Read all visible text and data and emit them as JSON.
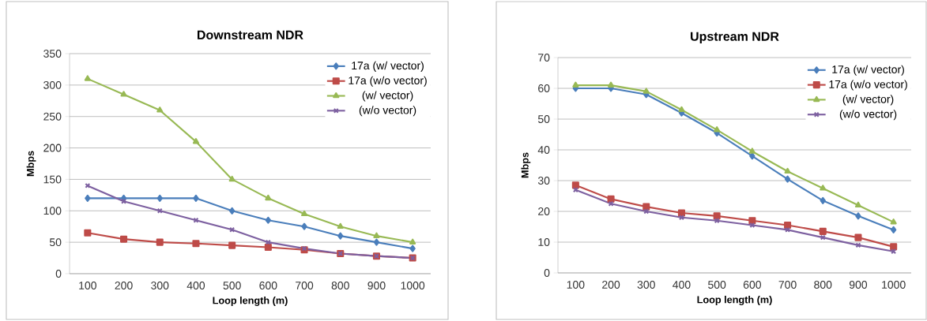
{
  "chart_data": [
    {
      "type": "line",
      "title": "Downstream NDR",
      "xlabel": "Loop length (m)",
      "ylabel": "Mbps",
      "categories": [
        "100",
        "200",
        "300",
        "400",
        "500",
        "600",
        "700",
        "800",
        "900",
        "1000"
      ],
      "ylim": [
        0,
        350
      ],
      "yticks": [
        0,
        50,
        100,
        150,
        200,
        250,
        300,
        350
      ],
      "grid": "y",
      "legend": "top right",
      "line_style": "solid",
      "series": [
        {
          "name": "17a (w/ vector)",
          "color": "#4a7ebb",
          "marker": "diamond",
          "values": [
            120,
            120,
            120,
            120,
            100,
            85,
            75,
            60,
            50,
            40
          ]
        },
        {
          "name": "17a (w/o vector)",
          "color": "#be4b48",
          "marker": "square",
          "values": [
            65,
            55,
            50,
            48,
            45,
            42,
            38,
            32,
            28,
            25
          ]
        },
        {
          "name": "(w/ vector)",
          "color": "#98b954",
          "marker": "triangle",
          "values": [
            310,
            285,
            260,
            210,
            150,
            120,
            95,
            75,
            60,
            50
          ]
        },
        {
          "name": "(w/o vector)",
          "color": "#7d60a0",
          "marker": "cross",
          "values": [
            140,
            115,
            100,
            85,
            70,
            50,
            40,
            32,
            28,
            25
          ]
        }
      ]
    },
    {
      "type": "line",
      "title": "Upstream NDR",
      "xlabel": "Loop length (m)",
      "ylabel": "Mbps",
      "categories": [
        "100",
        "200",
        "300",
        "400",
        "500",
        "600",
        "700",
        "800",
        "900",
        "1000"
      ],
      "ylim": [
        0,
        70
      ],
      "yticks": [
        0,
        10,
        20,
        30,
        40,
        50,
        60,
        70
      ],
      "grid": "y",
      "legend": "top right",
      "line_style": "solid",
      "series": [
        {
          "name": "17a (w/ vector)",
          "color": "#4a7ebb",
          "marker": "diamond",
          "values": [
            60,
            60,
            58,
            52,
            45.5,
            38,
            30.5,
            23.5,
            18.5,
            14
          ]
        },
        {
          "name": "17a (w/o vector)",
          "color": "#be4b48",
          "marker": "square",
          "values": [
            28.5,
            24,
            21.5,
            19.5,
            18.5,
            17,
            15.5,
            13.5,
            11.5,
            8.5
          ]
        },
        {
          "name": "(w/ vector)",
          "color": "#98b954",
          "marker": "triangle",
          "values": [
            61,
            61,
            59,
            53,
            46.5,
            39.5,
            33,
            27.5,
            22,
            16.5
          ]
        },
        {
          "name": "(w/o vector)",
          "color": "#7d60a0",
          "marker": "cross",
          "values": [
            27,
            22.5,
            20,
            18,
            17,
            15.5,
            14,
            11.5,
            9,
            7
          ]
        }
      ]
    }
  ]
}
